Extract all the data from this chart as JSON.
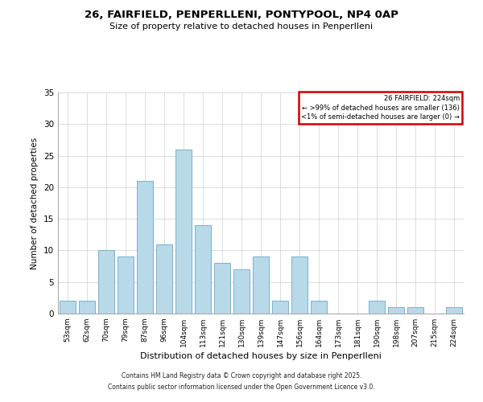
{
  "title1": "26, FAIRFIELD, PENPERLLENI, PONTYPOOL, NP4 0AP",
  "title2": "Size of property relative to detached houses in Penperlleni",
  "xlabel": "Distribution of detached houses by size in Penperlleni",
  "ylabel": "Number of detached properties",
  "bar_color": "#b8d9e8",
  "bar_edge_color": "#7ab0cc",
  "categories": [
    "53sqm",
    "62sqm",
    "70sqm",
    "79sqm",
    "87sqm",
    "96sqm",
    "104sqm",
    "113sqm",
    "121sqm",
    "130sqm",
    "139sqm",
    "147sqm",
    "156sqm",
    "164sqm",
    "173sqm",
    "181sqm",
    "190sqm",
    "198sqm",
    "207sqm",
    "215sqm",
    "224sqm"
  ],
  "values": [
    2,
    2,
    10,
    9,
    21,
    11,
    26,
    14,
    8,
    7,
    9,
    2,
    9,
    2,
    0,
    0,
    2,
    1,
    1,
    0,
    1
  ],
  "ylim": [
    0,
    35
  ],
  "yticks": [
    0,
    5,
    10,
    15,
    20,
    25,
    30,
    35
  ],
  "legend_title": "26 FAIRFIELD: 224sqm",
  "legend_line2": "← >99% of detached houses are smaller (136)",
  "legend_line3": "<1% of semi-detached houses are larger (0) →",
  "legend_box_color": "#cc0000",
  "footer1": "Contains HM Land Registry data © Crown copyright and database right 2025.",
  "footer2": "Contains public sector information licensed under the Open Government Licence v3.0.",
  "background_color": "#ffffff",
  "grid_color": "#d0d0d0"
}
